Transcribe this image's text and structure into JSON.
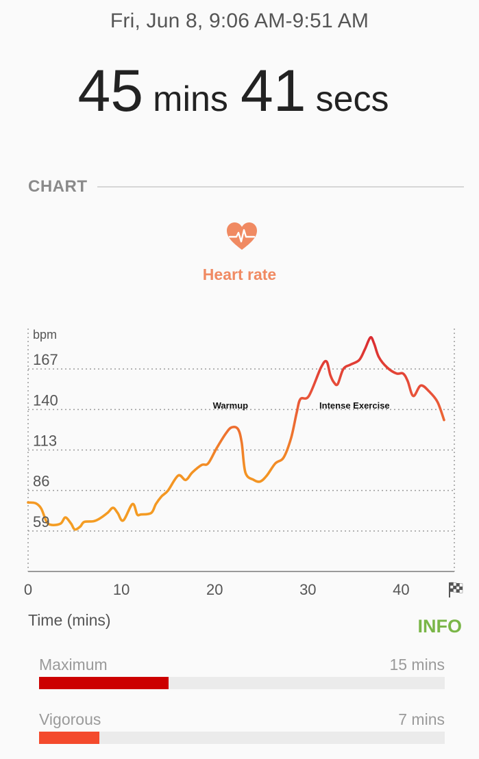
{
  "header": {
    "date_range": "Fri, Jun 8, 9:06 AM-9:51 AM",
    "duration_minutes_value": "45",
    "duration_minutes_unit": "mins",
    "duration_seconds_value": "41",
    "duration_seconds_unit": "secs"
  },
  "section": {
    "label": "CHART"
  },
  "heart_rate": {
    "title": "Heart rate",
    "icon": "heart-pulse-icon",
    "color": "#f08a62"
  },
  "chart_data": {
    "type": "line",
    "ylabel": "bpm",
    "xlabel": "Time (mins)",
    "y_ticks": [
      59,
      86,
      113,
      140,
      167
    ],
    "x_ticks": [
      0,
      10,
      20,
      30,
      40
    ],
    "x_end_icon": "checkered-flag-icon",
    "xlim": [
      0,
      45.7
    ],
    "ylim": [
      32,
      194
    ],
    "grid": true,
    "annotations": [
      {
        "text": "Warmup",
        "x": 21.7,
        "y": 143
      },
      {
        "text": "Intense Exercise",
        "x": 35,
        "y": 143
      }
    ],
    "colors": [
      "#f5a623",
      "#f39323",
      "#ef7a2c",
      "#e8533a",
      "#d8252f"
    ],
    "series": [
      {
        "values": [
          [
            0,
            78
          ],
          [
            0.8,
            77.5
          ],
          [
            1.4,
            74
          ],
          [
            2,
            65
          ],
          [
            2.6,
            63
          ],
          [
            3.5,
            64
          ],
          [
            4,
            68
          ],
          [
            4.6,
            64
          ],
          [
            5,
            60
          ],
          [
            5.6,
            62
          ],
          [
            6,
            65
          ],
          [
            7,
            65.5
          ],
          [
            7.6,
            67
          ],
          [
            8.5,
            71
          ],
          [
            9.1,
            74.5
          ],
          [
            9.6,
            71
          ],
          [
            10.2,
            66
          ],
          [
            11.2,
            77
          ],
          [
            11.7,
            70
          ],
          [
            12.1,
            70
          ],
          [
            13.2,
            71
          ],
          [
            13.7,
            77
          ],
          [
            14.3,
            82
          ],
          [
            15,
            86
          ],
          [
            16.1,
            96
          ],
          [
            16.9,
            93
          ],
          [
            17.6,
            98
          ],
          [
            18.6,
            103
          ],
          [
            19.3,
            104
          ],
          [
            20.2,
            114
          ],
          [
            21.2,
            124
          ],
          [
            21.8,
            128
          ],
          [
            22.5,
            127
          ],
          [
            22.9,
            118
          ],
          [
            23.3,
            98
          ],
          [
            24.2,
            93
          ],
          [
            24.9,
            92
          ],
          [
            25.6,
            96
          ],
          [
            26.5,
            104
          ],
          [
            27.4,
            108
          ],
          [
            28.2,
            121
          ],
          [
            28.8,
            138
          ],
          [
            29.2,
            147
          ],
          [
            30.1,
            149
          ],
          [
            31.4,
            168
          ],
          [
            32,
            172
          ],
          [
            32.4,
            163
          ],
          [
            32.8,
            158
          ],
          [
            33.2,
            157
          ],
          [
            33.8,
            167
          ],
          [
            34.6,
            170
          ],
          [
            35.5,
            173
          ],
          [
            36.1,
            180
          ],
          [
            36.7,
            188
          ],
          [
            37.1,
            184
          ],
          [
            37.6,
            175
          ],
          [
            38.5,
            168
          ],
          [
            39.5,
            164
          ],
          [
            40.2,
            164
          ],
          [
            40.7,
            159
          ],
          [
            41.3,
            149
          ],
          [
            42.1,
            156
          ],
          [
            43,
            152
          ],
          [
            43.9,
            145
          ],
          [
            44.6,
            133
          ]
        ]
      }
    ]
  },
  "info": {
    "label": "INFO",
    "color": "#7ab648"
  },
  "zones": [
    {
      "name": "Maximum",
      "time": "15 mins",
      "minutes": 15,
      "color": "#cc0000"
    },
    {
      "name": "Vigorous",
      "time": "7 mins",
      "minutes": 7,
      "color": "#f44a2c"
    }
  ],
  "zone_scale_minutes": 47
}
